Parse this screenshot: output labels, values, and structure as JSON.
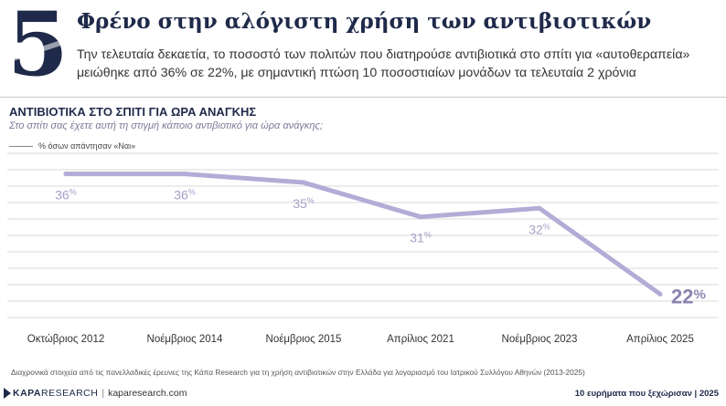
{
  "header": {
    "number": "5",
    "title": "Φρένο στην αλόγιστη χρήση των αντιβιοτικών",
    "subtitle": "Την τελευταία δεκαετία, το ποσοστό των πολιτών που διατηρούσε αντιβιοτικά στο σπίτι για «αυτοθεραπεία» μειώθηκε από 36% σε 22%, με σημαντική πτώση 10 ποσοστιαίων μονάδων τα τελευταία 2 χρόνια"
  },
  "chart_data": {
    "type": "line",
    "title": "ΑΝΤΙΒΙΟΤΙΚΑ ΣΤΟ ΣΠΙΤΙ ΓΙΑ ΩΡΑ ΑΝΑΓΚΗΣ",
    "question": "Στο σπίτι σας έχετε αυτή τη στιγμή κάποιο αντιβιοτικό για ώρα ανάγκης;",
    "categories": [
      "Οκτώβριος 2012",
      "Νοέμβριος 2014",
      "Νοέμβριος 2015",
      "Απρίλιος 2021",
      "Νοέμβριος 2023",
      "Απρίλιος 2025"
    ],
    "series": [
      {
        "name": "% όσων απάντησαν «Ναι»",
        "values": [
          36,
          36,
          35,
          31,
          32,
          22
        ]
      }
    ],
    "value_suffix": "%",
    "ylim": [
      18,
      40
    ],
    "grid": true,
    "line_color": "#b3acd6",
    "label_color": "#a7a0c8",
    "last_label_color": "#8a84b0"
  },
  "footnote": "Διαχρονικά στοιχεία από τις πανελλαδικές έρευνες της Κάπα Research για τη χρήση αντιβιοτικών στην Ελλάδα για λογαριασμό του Ιατρικού Συλλόγου Αθηνών (2013-2025)",
  "footer": {
    "brand_bold": "KAPA",
    "brand_rest": "RESEARCH",
    "separator": "|",
    "site": "kaparesearch.com",
    "right_text": "10 ευρήματα που ξεχώρισαν | 2025"
  }
}
